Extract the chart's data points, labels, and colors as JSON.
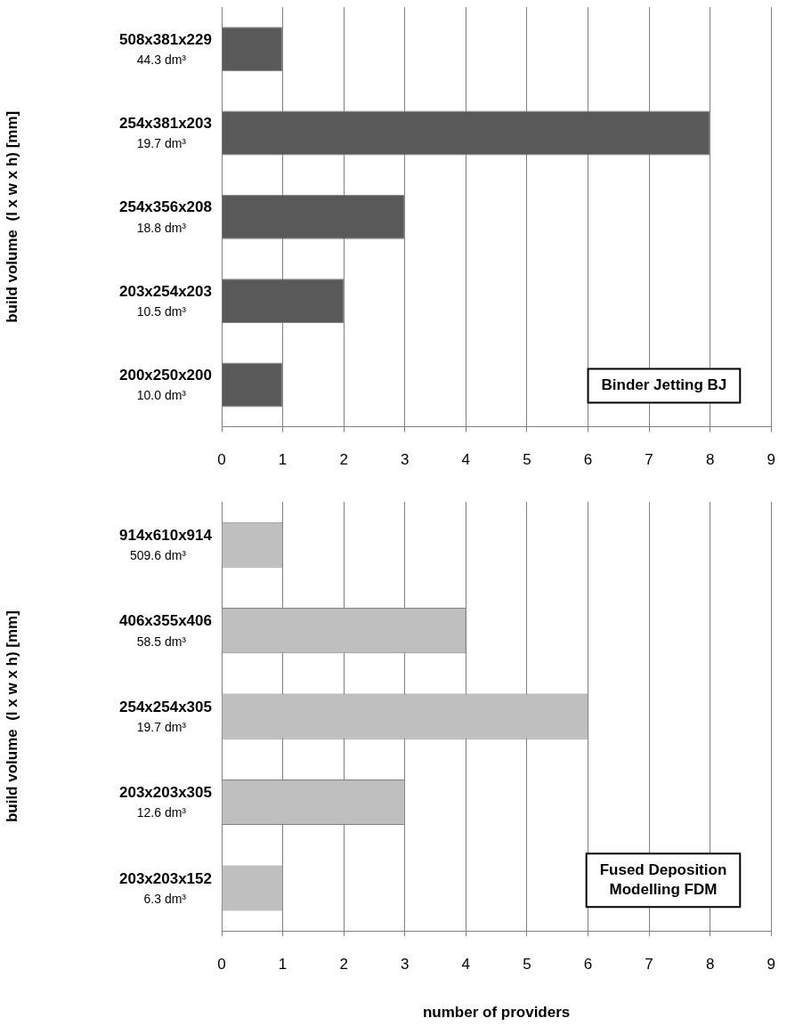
{
  "chart_data": [
    {
      "type": "bar",
      "orientation": "horizontal",
      "ylabel": "build volume  (l x w x h) [mm]",
      "categories": [
        "508x381x229\n44.3 dm³",
        "254x381x203\n19.7 dm³",
        "254x356x208\n18.8 dm³",
        "203x254x203\n10.5 dm³",
        "200x250x200\n10.0 dm³"
      ],
      "values": [
        1,
        8,
        3,
        2,
        1
      ],
      "color": "#595959",
      "xlim": [
        0,
        9
      ],
      "xticks": [
        0,
        1,
        2,
        3,
        4,
        5,
        6,
        7,
        8,
        9
      ],
      "grid": "x",
      "annotations": [
        "Binder Jetting BJ"
      ]
    },
    {
      "type": "bar",
      "orientation": "horizontal",
      "ylabel": "build volume  (l x w x h) [mm]",
      "xlabel": "number of providers",
      "categories": [
        "914x610x914\n509.6 dm³",
        "406x355x406\n58.5 dm³",
        "254x254x305\n19.7 dm³",
        "203x203x305\n12.6 dm³",
        "203x203x152\n6.3 dm³"
      ],
      "values": [
        1,
        4,
        6,
        3,
        1
      ],
      "color": "#bfbfbf",
      "xlim": [
        0,
        9
      ],
      "xticks": [
        0,
        1,
        2,
        3,
        4,
        5,
        6,
        7,
        8,
        9
      ],
      "grid": "x",
      "annotations": [
        "Fused Deposition\nModelling FDM"
      ]
    }
  ]
}
